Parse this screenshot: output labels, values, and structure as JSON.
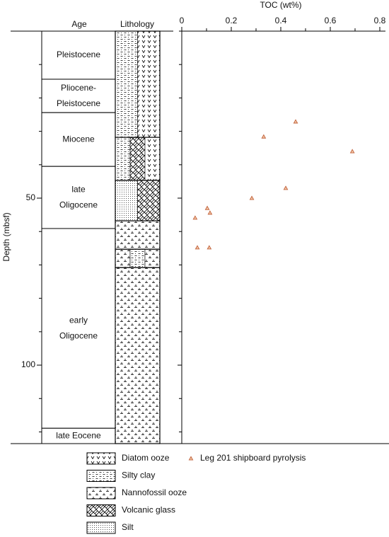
{
  "chart_data": {
    "type": "scatter",
    "title": "TOC (wt%)",
    "ylabel": "Depth (mbsf)",
    "age_header": "Age",
    "lithology_header": "Lithology",
    "xlim": [
      0,
      0.8
    ],
    "xticks": [
      0,
      0.2,
      0.4,
      0.6,
      0.8
    ],
    "xminorticks": [
      0.1,
      0.3,
      0.5,
      0.7
    ],
    "ylim": [
      0,
      123.5
    ],
    "yticks": [
      50,
      100
    ],
    "yminorticks": [
      10,
      20,
      30,
      40,
      60,
      70,
      80,
      90,
      110,
      120
    ],
    "series": [
      {
        "name": "Leg 201 shipboard pyrolysis",
        "color": "#c0603a",
        "x": [
          0.46,
          0.331,
          0.689,
          0.42,
          0.283,
          0.103,
          0.114,
          0.054,
          0.063,
          0.111
        ],
        "values": [
          27.1,
          31.6,
          36.0,
          47.0,
          50.0,
          53.0,
          54.4,
          55.9,
          64.8,
          64.8
        ]
      }
    ],
    "ages": [
      {
        "label": [
          "Pleistocene"
        ],
        "top": 0,
        "bottom": 14.4
      },
      {
        "label": [
          "Pliocene-",
          "Pleistocene"
        ],
        "top": 14.4,
        "bottom": 24.4
      },
      {
        "label": [
          "Miocene"
        ],
        "top": 24.4,
        "bottom": 40.5
      },
      {
        "label": [
          "late",
          "Oligocene"
        ],
        "top": 40.5,
        "bottom": 59.1
      },
      {
        "label": [
          "early",
          "Oligocene"
        ],
        "top": 59.1,
        "bottom": 118.9
      },
      {
        "label": [
          "late Eocene"
        ],
        "top": 118.9,
        "bottom": 123.5
      }
    ],
    "lithology_legend": [
      "Diatom ooze",
      "Silty clay",
      "Nannofossil ooze",
      "Volcanic glass",
      "Silt"
    ],
    "lithology": [
      {
        "top": 0,
        "bottom": 31.8,
        "components": [
          "Silty clay",
          "Diatom ooze"
        ]
      },
      {
        "top": 31.8,
        "bottom": 44.7,
        "components": [
          "Silty clay",
          "Volcanic glass",
          "Diatom ooze"
        ]
      },
      {
        "top": 44.7,
        "bottom": 56.8,
        "components": [
          "Silt",
          "Volcanic glass"
        ]
      },
      {
        "top": 56.8,
        "bottom": 65.3,
        "components": [
          "Nannofossil ooze"
        ]
      },
      {
        "top": 65.3,
        "bottom": 70.8,
        "components": [
          "Nannofossil ooze",
          "Silty clay",
          "Nannofossil ooze"
        ]
      },
      {
        "top": 70.8,
        "bottom": 123.5,
        "components": [
          "Nannofossil ooze"
        ]
      }
    ]
  }
}
